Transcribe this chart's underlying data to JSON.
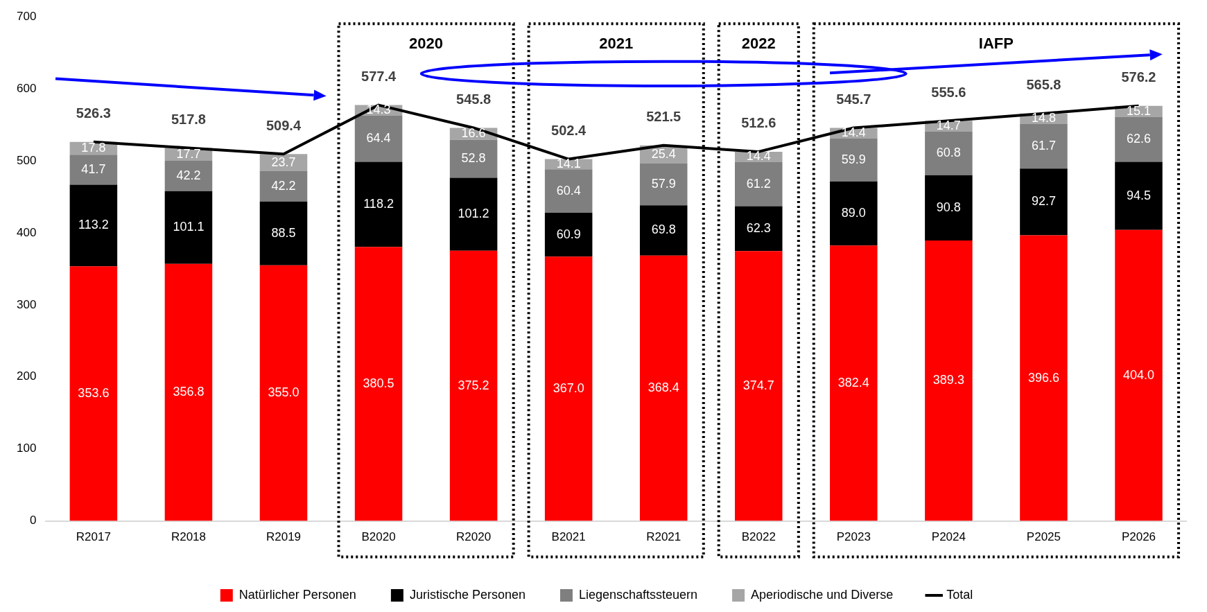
{
  "chart_data": {
    "type": "bar",
    "stacked": true,
    "categories": [
      "R2017",
      "R2018",
      "R2019",
      "B2020",
      "R2020",
      "B2021",
      "R2021",
      "B2022",
      "P2023",
      "P2024",
      "P2025",
      "P2026"
    ],
    "series": [
      {
        "name": "Natürlicher Personen",
        "color": "#ff0000",
        "values": [
          353.6,
          356.8,
          355.0,
          380.5,
          375.2,
          367.0,
          368.4,
          374.7,
          382.4,
          389.3,
          396.6,
          404.0
        ],
        "value_labels": [
          "353.6",
          "356.8",
          "355.0",
          "380.5",
          "375.2",
          "367.0",
          "368.4",
          "374.7",
          "382.4",
          "389.3",
          "396.6",
          "404.0"
        ]
      },
      {
        "name": "Juristische Personen",
        "color": "#000000",
        "values": [
          113.2,
          101.1,
          88.5,
          118.2,
          101.2,
          60.9,
          69.8,
          62.3,
          89.0,
          90.8,
          92.7,
          94.5
        ],
        "value_labels": [
          "113.2",
          "101.1",
          "88.5",
          "118.2",
          "101.2",
          "60.9",
          "69.8",
          "62.3",
          "89.0",
          "90.8",
          "92.7",
          "94.5"
        ]
      },
      {
        "name": "Liegenschaftssteuern",
        "color": "#7f7f7f",
        "values": [
          41.7,
          42.2,
          42.2,
          64.4,
          52.8,
          60.4,
          57.9,
          61.2,
          59.9,
          60.8,
          61.7,
          62.6
        ],
        "value_labels": [
          "41.7",
          "42.2",
          "42.2",
          "64.4",
          "52.8",
          "60.4",
          "57.9",
          "61.2",
          "59.9",
          "60.8",
          "61.7",
          "62.6"
        ]
      },
      {
        "name": "Aperiodische und Diverse",
        "color": "#a6a6a6",
        "values": [
          17.8,
          17.7,
          23.7,
          14.3,
          16.6,
          14.1,
          25.4,
          14.4,
          14.4,
          14.7,
          14.8,
          15.1
        ],
        "value_labels": [
          "17.8",
          "17.7",
          "23.7",
          "14.3",
          "16.6",
          "14.1",
          "25.4",
          "14.4",
          "14.4",
          "14.7",
          "14.8",
          "15.1"
        ]
      },
      {
        "name": "Total",
        "type": "line",
        "color": "#000000",
        "marker": "none",
        "values": [
          526.3,
          517.8,
          509.4,
          577.4,
          545.8,
          502.4,
          521.5,
          512.6,
          545.7,
          555.6,
          565.8,
          576.2
        ],
        "value_labels": [
          "526.3",
          "517.8",
          "509.4",
          "577.4",
          "545.8",
          "502.4",
          "521.5",
          "512.6",
          "545.7",
          "555.6",
          "565.8",
          "576.2"
        ]
      }
    ],
    "ylim": [
      0,
      700
    ],
    "yticks": [
      0,
      100,
      200,
      300,
      400,
      500,
      600,
      700
    ],
    "grid": false,
    "legend": "bottom",
    "annotations": [
      "2020",
      "2021",
      "2022",
      "IAFP"
    ]
  }
}
